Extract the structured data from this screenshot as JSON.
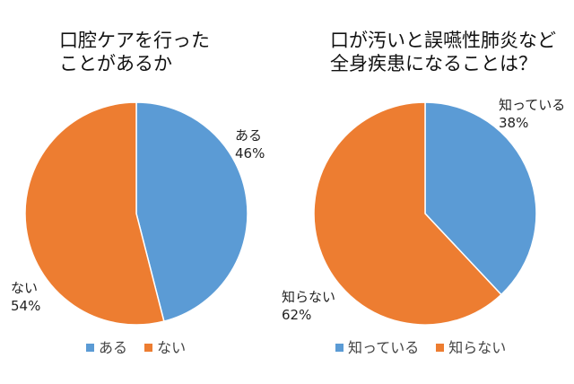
{
  "chart_data": [
    {
      "type": "pie",
      "title": "口腔ケアを行った\nことがあるか",
      "slices": [
        {
          "label": "ある",
          "value": 46,
          "value_label": "46%",
          "color": "#5b9bd5"
        },
        {
          "label": "ない",
          "value": 54,
          "value_label": "54%",
          "color": "#ed7d31"
        }
      ],
      "legend": {
        "position": "bottom",
        "entries": [
          "ある",
          "ない"
        ]
      }
    },
    {
      "type": "pie",
      "title": "口が汚いと誤嚥性肺炎など\n全身疾患になることは？",
      "slices": [
        {
          "label": "知っている",
          "value": 38,
          "value_label": "38%",
          "color": "#5b9bd5"
        },
        {
          "label": "知らない",
          "value": 62,
          "value_label": "62%",
          "color": "#ed7d31"
        }
      ],
      "legend": {
        "position": "bottom",
        "entries": [
          "知っている",
          "知らない"
        ]
      }
    }
  ]
}
